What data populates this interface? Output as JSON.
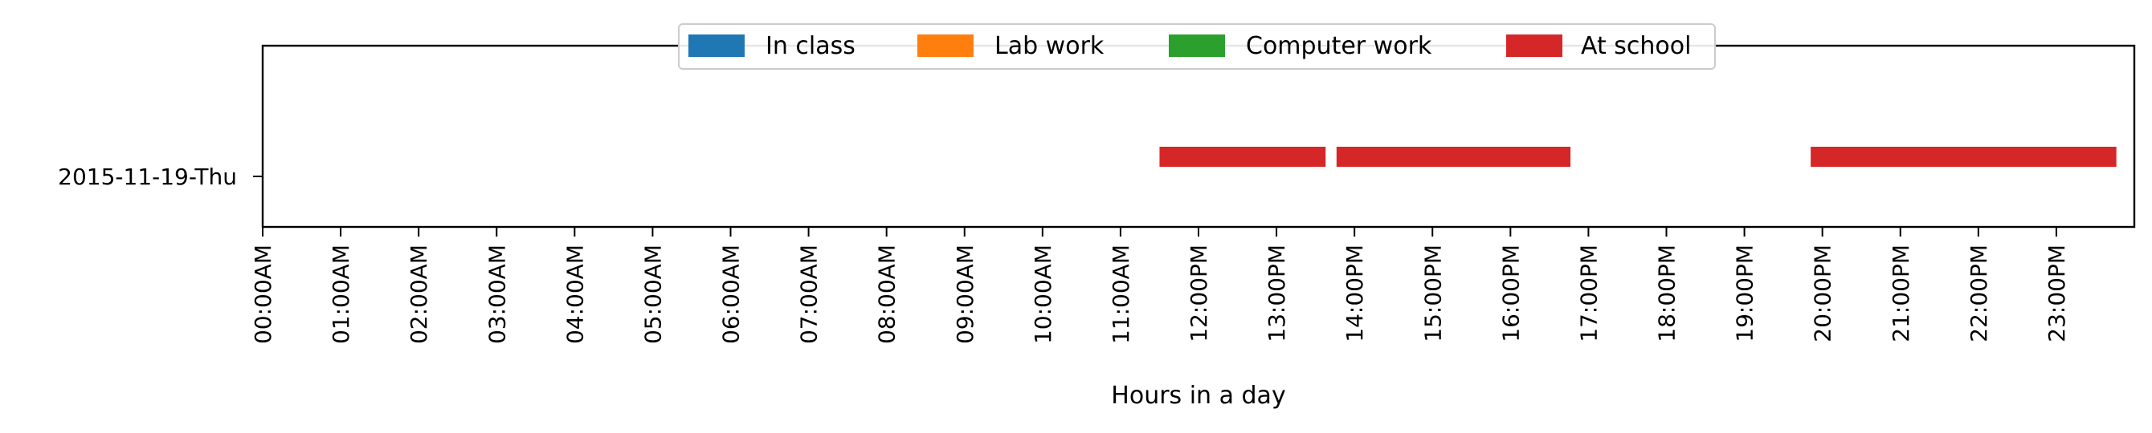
{
  "chart_data": {
    "type": "timeline",
    "title": "",
    "xlabel": "Hours in a day",
    "ylabel": "",
    "categories": [
      "2015-11-19-Thu"
    ],
    "xlim": [
      0,
      24
    ],
    "x_ticks": [
      "00:00AM",
      "01:00AM",
      "02:00AM",
      "03:00AM",
      "04:00AM",
      "05:00AM",
      "06:00AM",
      "07:00AM",
      "08:00AM",
      "09:00AM",
      "10:00AM",
      "11:00AM",
      "12:00PM",
      "13:00PM",
      "14:00PM",
      "15:00PM",
      "16:00PM",
      "17:00PM",
      "18:00PM",
      "19:00PM",
      "20:00PM",
      "21:00PM",
      "22:00PM",
      "23:00PM"
    ],
    "grid": false,
    "legend_position": "top-center",
    "series": [
      {
        "name": "In class",
        "color": "#1f77b4",
        "intervals": []
      },
      {
        "name": "Lab work",
        "color": "#ff7f0e",
        "intervals": []
      },
      {
        "name": "Computer work",
        "color": "#2ca02c",
        "intervals": []
      },
      {
        "name": "At school",
        "color": "#d62728",
        "intervals": [
          {
            "day": "2015-11-19-Thu",
            "start": 11.5,
            "end": 13.63
          },
          {
            "day": "2015-11-19-Thu",
            "start": 13.77,
            "end": 16.77
          },
          {
            "day": "2015-11-19-Thu",
            "start": 19.85,
            "end": 23.77
          }
        ]
      }
    ]
  }
}
